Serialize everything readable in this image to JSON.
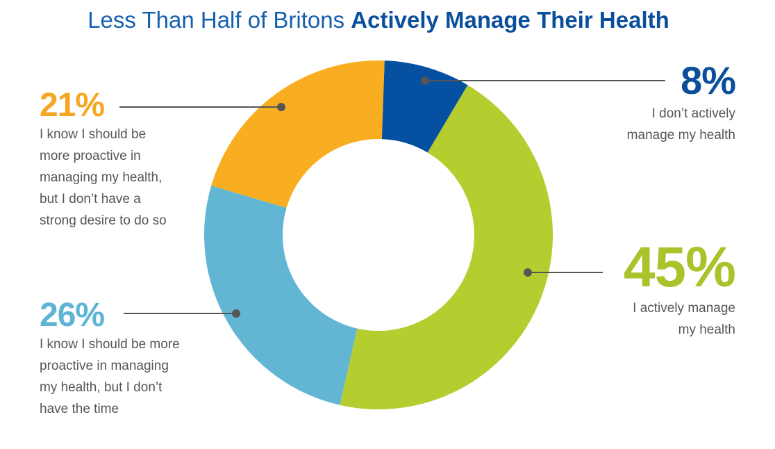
{
  "title": {
    "regular": "Less Than Half of Britons ",
    "bold": "Actively Manage Their Health"
  },
  "chart_data": {
    "type": "pie",
    "donut": true,
    "title": "Less Than Half of Britons Actively Manage Their Health",
    "slices": [
      {
        "label": "I don’t actively manage my health",
        "value": 8,
        "display": "8%",
        "color": "#0550a0",
        "description": [
          "I don’t actively",
          "manage my health"
        ]
      },
      {
        "label": "I actively manage my health",
        "value": 45,
        "display": "45%",
        "color": "#b5cd2f",
        "description": [
          "I actively manage",
          "my health"
        ]
      },
      {
        "label": "I know I should be more proactive in managing my health, but I don’t have the time",
        "value": 26,
        "display": "26%",
        "color": "#62b6d4",
        "description": [
          "I know I should be more",
          "proactive in managing",
          "my health, but I don’t",
          "have the time"
        ]
      },
      {
        "label": "I know I should be more proactive in managing my health, but I don’t have a strong desire to do so",
        "value": 21,
        "display": "21%",
        "color": "#f9ae22",
        "description": [
          "I know I should be",
          "more proactive in",
          "managing my health,",
          "but I don’t have a",
          "strong desire to do so"
        ]
      }
    ]
  }
}
